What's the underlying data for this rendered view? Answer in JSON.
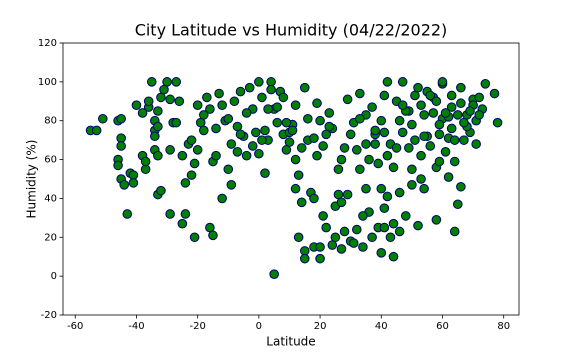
{
  "chart_data": {
    "type": "scatter",
    "title": "City Latitude vs Humidity (04/22/2022)",
    "x_label": "Latitude",
    "y_label": "Humidity (%)",
    "x": [
      -55,
      -53,
      -51,
      -46,
      -45,
      -45,
      -45,
      -46,
      -46,
      -45,
      -44,
      -43,
      -42,
      -41,
      -41,
      -40,
      -38,
      -37,
      -37,
      -36,
      -36,
      -35,
      -34,
      -34,
      -33,
      -33,
      -32,
      -34,
      -33,
      -32,
      -31,
      -30,
      -29,
      -28,
      -27,
      -29,
      -29,
      -27,
      -25,
      -25,
      -24,
      -24,
      -23,
      -22,
      -21,
      -21,
      -20,
      -20,
      -19,
      -18,
      -17,
      -16,
      -15,
      -15,
      -14,
      -13,
      -12,
      -11,
      -10,
      -9,
      -9,
      -8,
      -7,
      -6,
      -5,
      -4,
      -3,
      -2,
      -1,
      0,
      1,
      2,
      2,
      3,
      4,
      5,
      5,
      6,
      7,
      8,
      9,
      10,
      11,
      12,
      12,
      13,
      13,
      14,
      15,
      15,
      15,
      16,
      17,
      18,
      18,
      19,
      20,
      20,
      21,
      22,
      22,
      23,
      24,
      25,
      25,
      26,
      27,
      27,
      28,
      29,
      30,
      31,
      32,
      33,
      34,
      35,
      35,
      36,
      37,
      38,
      39,
      40,
      40,
      41,
      41,
      42,
      42,
      43,
      44,
      44,
      45,
      46,
      46,
      47,
      48,
      49,
      50,
      50,
      51,
      52,
      53,
      54,
      55,
      55,
      57,
      58,
      58,
      59,
      60,
      60,
      61,
      62,
      62,
      63,
      64,
      64,
      65,
      66,
      66,
      67,
      68,
      69,
      70,
      71,
      72,
      73,
      74,
      77,
      78,
      -34,
      -33,
      -10,
      -7,
      0,
      3,
      8,
      9,
      14,
      20,
      24,
      28,
      30,
      33,
      36,
      37,
      38,
      39,
      40,
      43,
      45,
      47,
      48,
      50,
      52,
      54,
      56,
      57,
      59,
      61,
      63,
      65,
      66,
      68,
      70,
      71,
      -16,
      -14,
      -4,
      6,
      10,
      16,
      18,
      26,
      31,
      34,
      42,
      44,
      49,
      53,
      56,
      60,
      62,
      67,
      -26,
      -22,
      -12,
      -6,
      1,
      11,
      19,
      21,
      29,
      32,
      35,
      38,
      41,
      46,
      51,
      54,
      58,
      63,
      69,
      -38,
      -18,
      -2,
      4,
      12,
      23,
      27,
      33,
      41,
      47,
      53,
      59,
      64,
      72
    ],
    "values": [
      75,
      75,
      81,
      80,
      81,
      71,
      67,
      60,
      57,
      50,
      47,
      32,
      53,
      52,
      48,
      88,
      62,
      55,
      59,
      87,
      90,
      100,
      75,
      65,
      62,
      42,
      44,
      80,
      85,
      92,
      96,
      100,
      91,
      79,
      79,
      65,
      32,
      100,
      62,
      27,
      32,
      48,
      68,
      52,
      20,
      58,
      65,
      88,
      79,
      75,
      92,
      25,
      21,
      59,
      62,
      94,
      40,
      80,
      55,
      47,
      68,
      90,
      64,
      95,
      72,
      62,
      97,
      86,
      74,
      100,
      92,
      75,
      53,
      70,
      100,
      1,
      86,
      79,
      95,
      73,
      65,
      74,
      78,
      60,
      45,
      52,
      20,
      38,
      13,
      9,
      97,
      70,
      43,
      15,
      40,
      89,
      9,
      15,
      31,
      25,
      73,
      84,
      16,
      20,
      36,
      42,
      14,
      60,
      23,
      91,
      18,
      17,
      65,
      94,
      15,
      45,
      83,
      33,
      20,
      73,
      25,
      12,
      45,
      93,
      35,
      100,
      62,
      20,
      10,
      27,
      90,
      43,
      23,
      100,
      31,
      85,
      55,
      47,
      93,
      26,
      88,
      45,
      95,
      72,
      92,
      56,
      29,
      73,
      81,
      99,
      64,
      82,
      51,
      87,
      59,
      23,
      37,
      46,
      97,
      70,
      83,
      74,
      91,
      68,
      92,
      86,
      99,
      94,
      79,
      72,
      77,
      81,
      77,
      63,
      86,
      92,
      79,
      66,
      80,
      76,
      66,
      73,
      55,
      60,
      87,
      68,
      58,
      80,
      68,
      66,
      74,
      85,
      78,
      97,
      72,
      67,
      84,
      59,
      84,
      76,
      83,
      89,
      77,
      88,
      80,
      86,
      76,
      84,
      87,
      69,
      81,
      71,
      55,
      79,
      31,
      41,
      56,
      66,
      50,
      93,
      100,
      71,
      79,
      90,
      70,
      88,
      73,
      70,
      75,
      62,
      67,
      42,
      24,
      68,
      75,
      25,
      80,
      70,
      83,
      90,
      93,
      85,
      84,
      83,
      67,
      96,
      88,
      77,
      38,
      81,
      74,
      88,
      62,
      78,
      70,
      83
    ],
    "color": "#008000",
    "edgecolor": "#00006b",
    "xlim": [
      -64,
      85
    ],
    "ylim": [
      -20,
      120
    ],
    "xticks": [
      -60,
      -40,
      -20,
      0,
      20,
      40,
      60,
      80
    ],
    "yticks": [
      -20,
      0,
      20,
      40,
      60,
      80,
      100,
      120
    ]
  }
}
